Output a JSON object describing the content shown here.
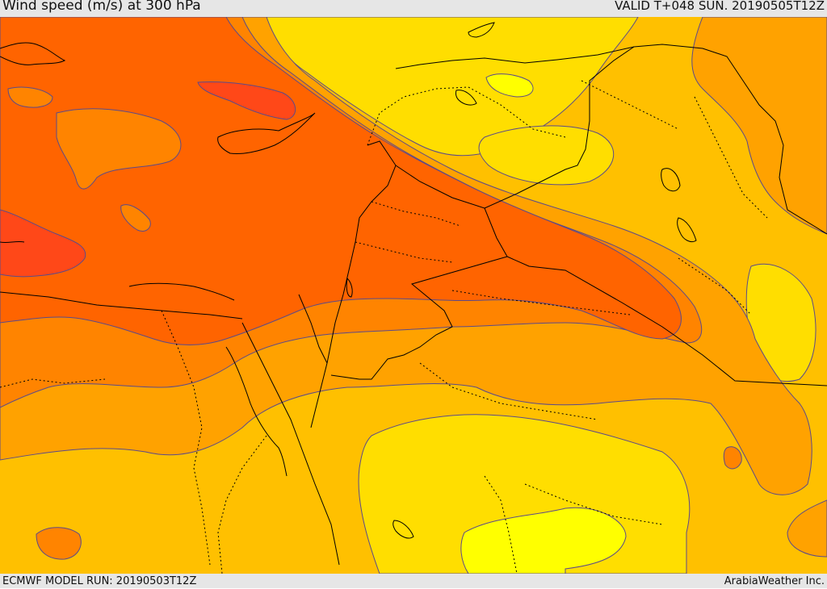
{
  "header": {
    "title": "Wind speed (m/s) at 300 hPa",
    "valid": "VALID T+048 SUN. 20190505T12Z"
  },
  "footer": {
    "model_run": "ECMWF MODEL RUN: 20190503T12Z",
    "brand": "ArabiaWeather Inc."
  },
  "map": {
    "variable": "wind speed",
    "units": "m/s",
    "level": "300 hPa",
    "colors": {
      "band_1": "#ffff00",
      "band_2": "#ffde00",
      "band_3": "#ffc000",
      "band_4": "#ffa200",
      "band_5": "#ff8400",
      "band_6": "#ff6400",
      "band_7": "#ff4818",
      "contour_line": "#5b4a8a",
      "border_line": "#000000"
    }
  }
}
